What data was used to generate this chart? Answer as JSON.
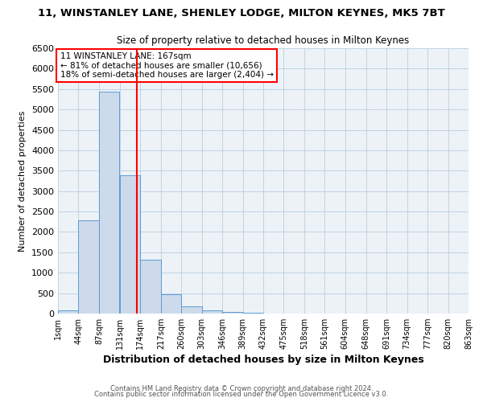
{
  "title_line1": "11, WINSTANLEY LANE, SHENLEY LODGE, MILTON KEYNES, MK5 7BT",
  "title_line2": "Size of property relative to detached houses in Milton Keynes",
  "xlabel": "Distribution of detached houses by size in Milton Keynes",
  "ylabel": "Number of detached properties",
  "bar_left_edges": [
    1,
    44,
    87,
    131,
    174,
    217,
    260,
    303,
    346,
    389,
    432,
    475,
    518,
    561,
    604,
    648,
    691,
    734,
    777,
    820
  ],
  "bar_heights": [
    75,
    2280,
    5430,
    3380,
    1320,
    480,
    185,
    80,
    30,
    10,
    5,
    2,
    0,
    0,
    0,
    0,
    0,
    0,
    0,
    0
  ],
  "bin_width": 43,
  "bar_color": "#ccdaeb",
  "bar_edge_color": "#5b9bd5",
  "vline_x": 167,
  "vline_color": "red",
  "annotation_line1": "11 WINSTANLEY LANE: 167sqm",
  "annotation_line2": "← 81% of detached houses are smaller (10,656)",
  "annotation_line3": "18% of semi-detached houses are larger (2,404) →",
  "annotation_box_color": "red",
  "ylim": [
    0,
    6500
  ],
  "xlim": [
    1,
    863
  ],
  "xtick_labels": [
    "1sqm",
    "44sqm",
    "87sqm",
    "131sqm",
    "174sqm",
    "217sqm",
    "260sqm",
    "303sqm",
    "346sqm",
    "389sqm",
    "432sqm",
    "475sqm",
    "518sqm",
    "561sqm",
    "604sqm",
    "648sqm",
    "691sqm",
    "734sqm",
    "777sqm",
    "820sqm",
    "863sqm"
  ],
  "xtick_positions": [
    1,
    44,
    87,
    131,
    174,
    217,
    260,
    303,
    346,
    389,
    432,
    475,
    518,
    561,
    604,
    648,
    691,
    734,
    777,
    820,
    863
  ],
  "ytick_positions": [
    0,
    500,
    1000,
    1500,
    2000,
    2500,
    3000,
    3500,
    4000,
    4500,
    5000,
    5500,
    6000,
    6500
  ],
  "footer_line1": "Contains HM Land Registry data © Crown copyright and database right 2024.",
  "footer_line2": "Contains public sector information licensed under the Open Government Licence v3.0.",
  "grid_color": "#b8cfe0",
  "background_color": "#edf2f7"
}
